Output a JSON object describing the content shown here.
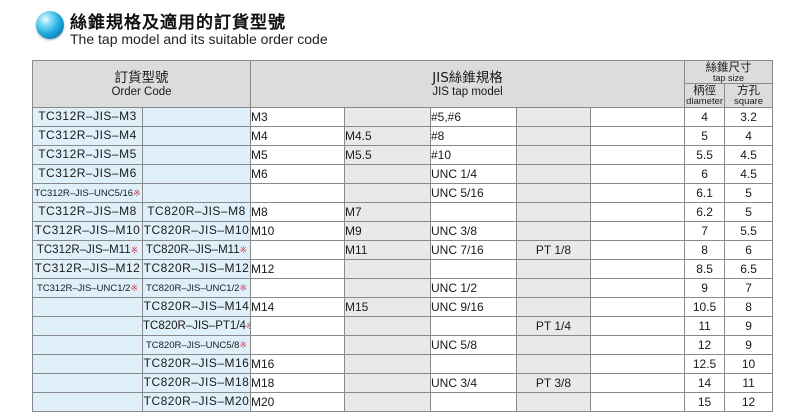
{
  "heading": {
    "title_zh": "絲錐規格及適用的訂貨型號",
    "title_en": "The tap model and its suitable order code"
  },
  "table": {
    "header": {
      "order_code_zh": "訂貨型號",
      "order_code_en": "Order Code",
      "jis_zh": "JIS絲錐規格",
      "jis_en": "JIS tap model",
      "tap_size_zh": "絲錐尺寸",
      "tap_size_en": "tap size",
      "diameter_zh": "柄徑",
      "diameter_en": "diameter",
      "square_zh": "方孔",
      "square_en": "square"
    },
    "note_mark": "※",
    "rows": [
      {
        "code1": "TC312R–JIS–M3",
        "code1_mark": "",
        "code2": "",
        "code2_mark": "",
        "m": "M3",
        "m2": "",
        "unc": "#5,#6",
        "pt": "",
        "dia": "4",
        "sq": "3.2"
      },
      {
        "code1": "TC312R–JIS–M4",
        "code1_mark": "",
        "code2": "",
        "code2_mark": "",
        "m": "M4",
        "m2": "M4.5",
        "unc": "#8",
        "pt": "",
        "dia": "5",
        "sq": "4"
      },
      {
        "code1": "TC312R–JIS–M5",
        "code1_mark": "",
        "code2": "",
        "code2_mark": "",
        "m": "M5",
        "m2": "M5.5",
        "unc": "#10",
        "pt": "",
        "dia": "5.5",
        "sq": "4.5"
      },
      {
        "code1": "TC312R–JIS–M6",
        "code1_mark": "",
        "code2": "",
        "code2_mark": "",
        "m": "M6",
        "m2": "",
        "unc": "UNC 1/4",
        "pt": "",
        "dia": "6",
        "sq": "4.5"
      },
      {
        "code1": "TC312R–JIS–UNC5/16",
        "code1_mark": "※",
        "code2": "",
        "code2_mark": "",
        "m": "",
        "m2": "",
        "unc": "UNC 5/16",
        "pt": "",
        "dia": "6.1",
        "sq": "5"
      },
      {
        "code1": "TC312R–JIS–M8",
        "code1_mark": "",
        "code2": "TC820R–JIS–M8",
        "code2_mark": "",
        "m": "M8",
        "m2": "M7",
        "unc": "",
        "pt": "",
        "dia": "6.2",
        "sq": "5"
      },
      {
        "code1": "TC312R–JIS–M10",
        "code1_mark": "",
        "code2": "TC820R–JIS–M10",
        "code2_mark": "",
        "m": "M10",
        "m2": "M9",
        "unc": "UNC 3/8",
        "pt": "",
        "dia": "7",
        "sq": "5.5"
      },
      {
        "code1": "TC312R–JIS–M11",
        "code1_mark": "※",
        "code2": "TC820R–JIS–M11",
        "code2_mark": "※",
        "m": "",
        "m2": "M11",
        "unc": "UNC 7/16",
        "pt": "PT 1/8",
        "dia": "8",
        "sq": "6"
      },
      {
        "code1": "TC312R–JIS–M12",
        "code1_mark": "",
        "code2": "TC820R–JIS–M12",
        "code2_mark": "",
        "m": "M12",
        "m2": "",
        "unc": "",
        "pt": "",
        "dia": "8.5",
        "sq": "6.5"
      },
      {
        "code1": "TC312R–JIS–UNC1/2",
        "code1_mark": "※",
        "code2": "TC820R–JIS–UNC1/2",
        "code2_mark": "※",
        "m": "",
        "m2": "",
        "unc": "UNC 1/2",
        "pt": "",
        "dia": "9",
        "sq": "7"
      },
      {
        "code1": "",
        "code1_mark": "",
        "code2": "TC820R–JIS–M14",
        "code2_mark": "",
        "m": "M14",
        "m2": "M15",
        "unc": "UNC 9/16",
        "pt": "",
        "dia": "10.5",
        "sq": "8"
      },
      {
        "code1": "",
        "code1_mark": "",
        "code2": "TC820R–JIS–PT1/4",
        "code2_mark": "※",
        "m": "",
        "m2": "",
        "unc": "",
        "pt": "PT 1/4",
        "dia": "11",
        "sq": "9"
      },
      {
        "code1": "",
        "code1_mark": "",
        "code2": "TC820R–JIS–UNC5/8",
        "code2_mark": "※",
        "m": "",
        "m2": "",
        "unc": "UNC 5/8",
        "pt": "",
        "dia": "12",
        "sq": "9"
      },
      {
        "code1": "",
        "code1_mark": "",
        "code2": "TC820R–JIS–M16",
        "code2_mark": "",
        "m": "M16",
        "m2": "",
        "unc": "",
        "pt": "",
        "dia": "12.5",
        "sq": "10"
      },
      {
        "code1": "",
        "code1_mark": "",
        "code2": "TC820R–JIS–M18",
        "code2_mark": "",
        "m": "M18",
        "m2": "",
        "unc": "UNC 3/4",
        "pt": "PT 3/8",
        "dia": "14",
        "sq": "11"
      },
      {
        "code1": "",
        "code1_mark": "",
        "code2": "TC820R–JIS–M20",
        "code2_mark": "",
        "m": "M20",
        "m2": "",
        "unc": "",
        "pt": "",
        "dia": "15",
        "sq": "12"
      }
    ]
  }
}
